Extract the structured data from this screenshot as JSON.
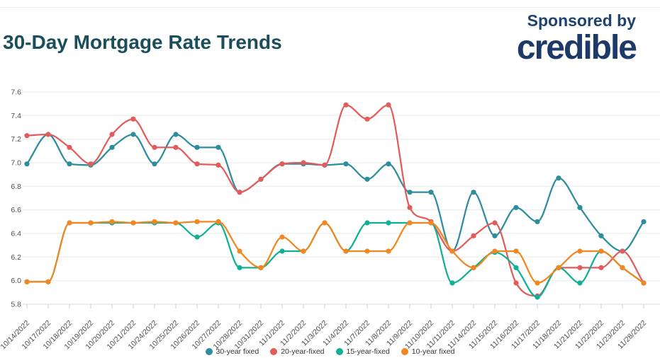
{
  "header": {
    "title": "30-Day Mortgage Rate Trends",
    "sponsored_by": "Sponsored by",
    "brand": "credible"
  },
  "colors": {
    "title_text": "#1A4E5A",
    "sponsor_text": "#1E4274",
    "brand_text": "#1C3968",
    "grid_line": "#E8E8E8",
    "axis_line": "#DDDDDD",
    "tick_mark": "#CCCCCC",
    "axis_text": "#4D4D4D",
    "background": "#FFFFFF"
  },
  "chart_data": {
    "type": "line",
    "title": "30-Day Mortgage Rate Trends",
    "xlabel": "",
    "ylabel": "",
    "ylim": [
      5.8,
      7.6
    ],
    "yticks": [
      7.6,
      7.4,
      7.2,
      7.0,
      6.8,
      6.6,
      6.4,
      6.2,
      6.0,
      5.8
    ],
    "grid": true,
    "legend_position": "bottom",
    "categories": [
      "10/14/2022",
      "10/17/2022",
      "10/18/2022",
      "10/19/2022",
      "10/20/2022",
      "10/21/2022",
      "10/24/2022",
      "10/25/2022",
      "10/26/2022",
      "10/27/2022",
      "10/28/2022",
      "10/31/2022",
      "11/1/2022",
      "11/2/2022",
      "11/3/2022",
      "11/4/2022",
      "11/7/2022",
      "11/8/2022",
      "11/9/2022",
      "11/10/2022",
      "11/11/2022",
      "11/14/2022",
      "11/15/2022",
      "11/16/2022",
      "11/17/2022",
      "11/18/2022",
      "11/21/2022",
      "11/22/2022",
      "11/23/2022",
      "11/28/2022"
    ],
    "series": [
      {
        "name": "30-year fixed",
        "color": "#2E8D9D",
        "values": [
          6.99,
          7.24,
          6.99,
          6.98,
          7.13,
          7.24,
          6.99,
          7.24,
          7.13,
          7.13,
          6.75,
          6.86,
          6.99,
          6.99,
          6.98,
          6.99,
          6.86,
          6.99,
          6.75,
          6.75,
          6.25,
          6.75,
          6.38,
          6.62,
          6.5,
          6.87,
          6.62,
          6.38,
          6.25,
          6.5
        ]
      },
      {
        "name": "20-year-fixed",
        "color": "#E25C5C",
        "values": [
          7.23,
          7.24,
          7.13,
          6.99,
          7.24,
          7.37,
          7.13,
          7.13,
          6.99,
          6.98,
          6.75,
          6.86,
          6.99,
          7.0,
          6.98,
          7.49,
          7.37,
          7.49,
          6.62,
          6.5,
          6.25,
          6.38,
          6.49,
          5.98,
          5.87,
          6.11,
          6.11,
          6.11,
          6.25,
          5.98
        ]
      },
      {
        "name": "15-year-fixed",
        "color": "#10B097",
        "values": [
          5.99,
          5.99,
          6.49,
          6.49,
          6.49,
          6.49,
          6.49,
          6.49,
          6.37,
          6.49,
          6.11,
          6.11,
          6.25,
          6.25,
          6.49,
          6.25,
          6.49,
          6.49,
          6.49,
          6.49,
          5.98,
          6.11,
          6.24,
          6.11,
          5.86,
          6.11,
          5.98,
          6.25,
          6.11,
          5.98
        ]
      },
      {
        "name": "10-year fixed",
        "color": "#F2871F",
        "values": [
          5.99,
          5.99,
          6.49,
          6.49,
          6.5,
          6.49,
          6.5,
          6.49,
          6.5,
          6.5,
          6.25,
          6.11,
          6.37,
          6.25,
          6.49,
          6.25,
          6.25,
          6.25,
          6.49,
          6.49,
          6.25,
          6.11,
          6.25,
          6.25,
          5.98,
          6.11,
          6.25,
          6.25,
          6.11,
          5.98
        ]
      }
    ]
  }
}
